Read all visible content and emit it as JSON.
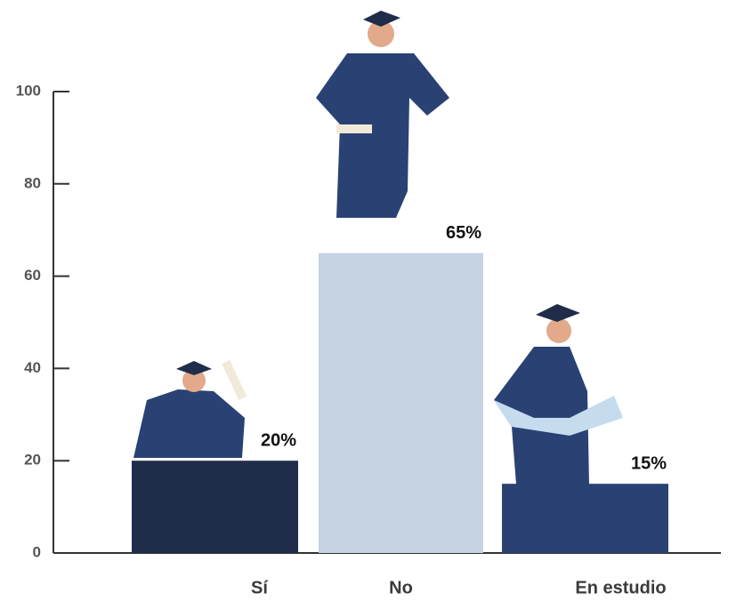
{
  "chart_data": {
    "type": "bar",
    "categories": [
      "Sí",
      "No",
      "En estudio"
    ],
    "values": [
      20,
      65,
      15
    ],
    "value_labels": [
      "20%",
      "65%",
      "15%"
    ],
    "colors": [
      "#1f2d4b",
      "#c5d3e3",
      "#2a4273"
    ],
    "ylim": [
      0,
      100
    ],
    "yticks": [
      0,
      20,
      40,
      60,
      80,
      100
    ]
  }
}
